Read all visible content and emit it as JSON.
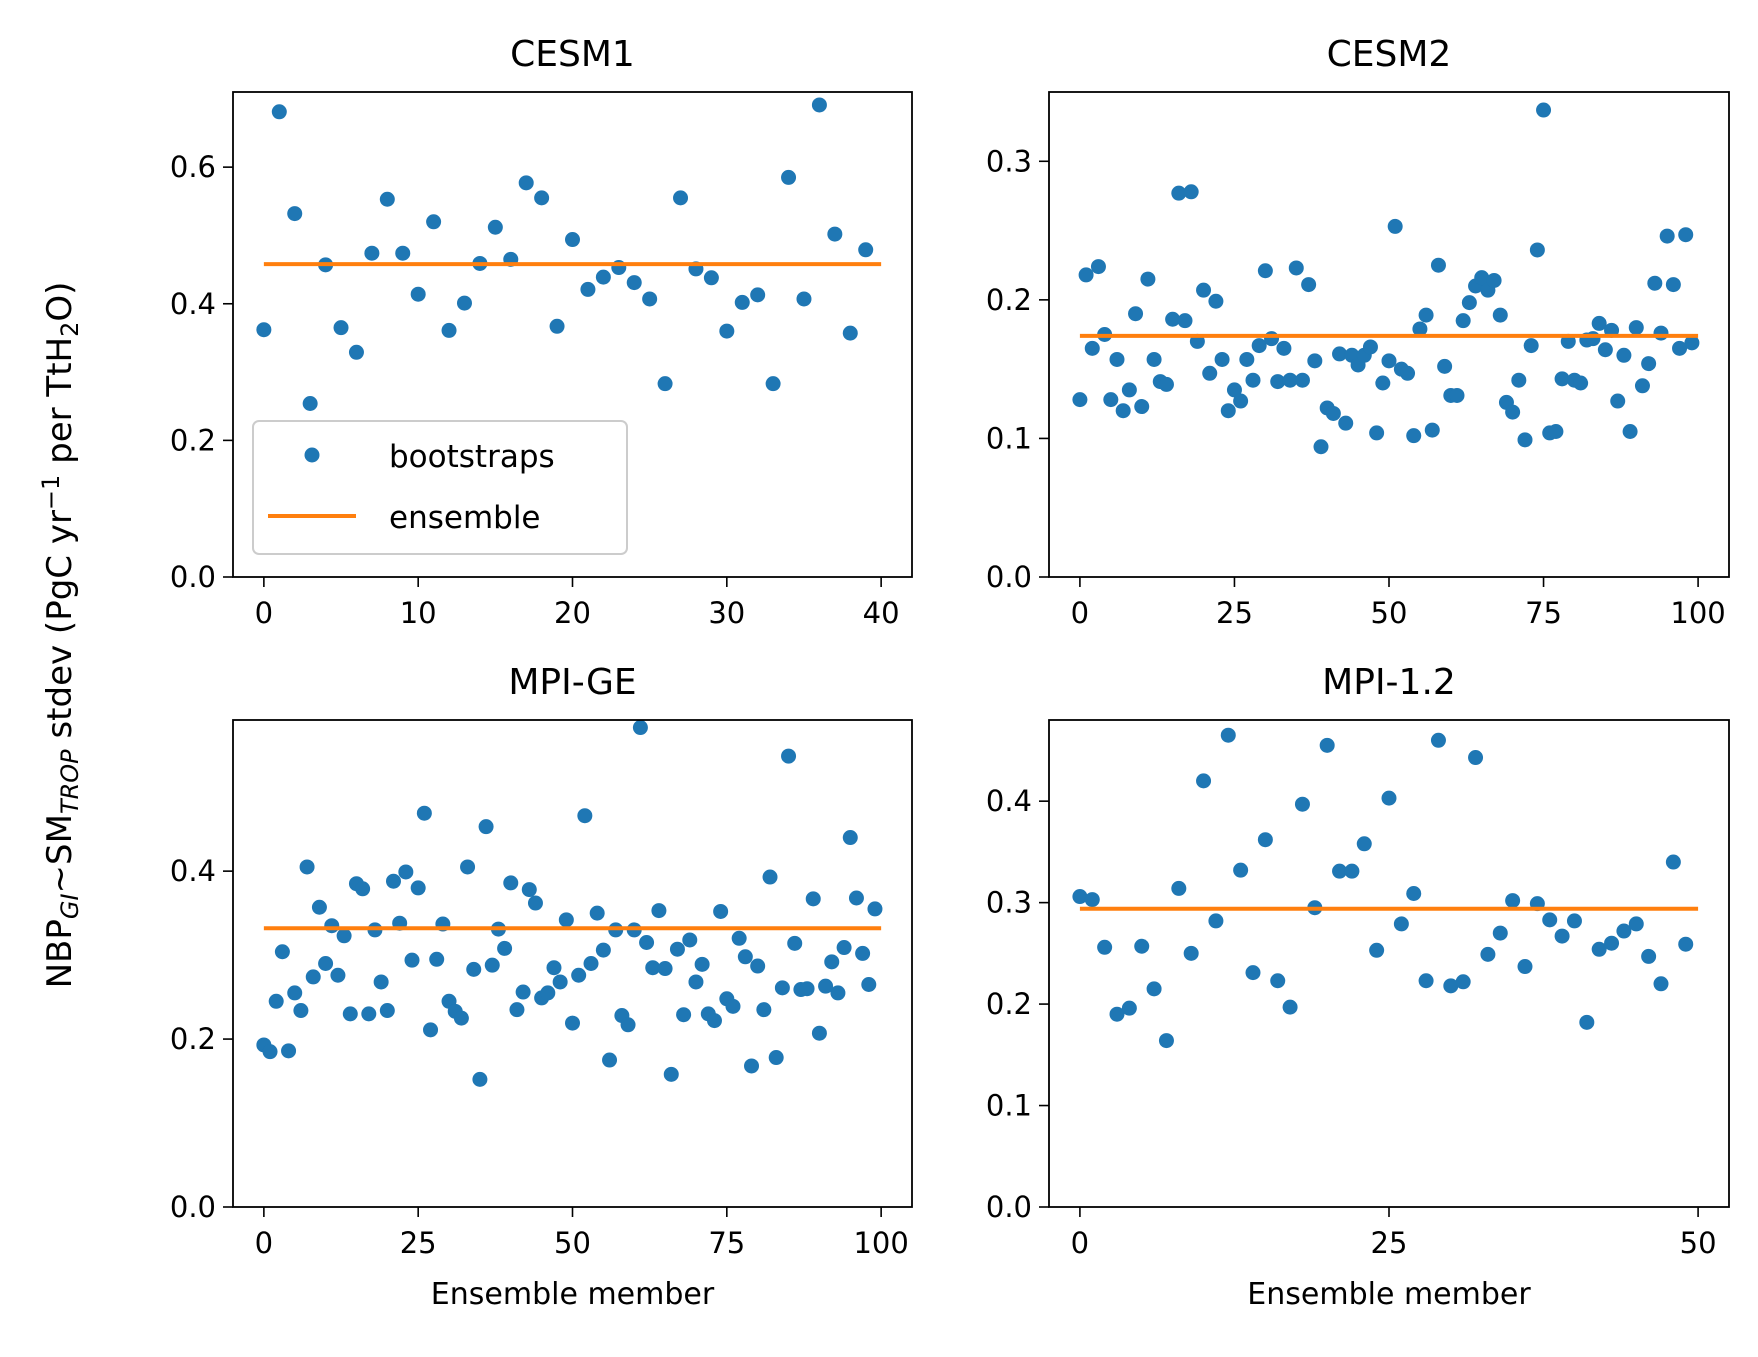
{
  "figure": {
    "ylabel": {
      "pre": "NBP",
      "sub1": "GI",
      "mid": "~SM",
      "sub2": "TROP",
      "post": " stdev (PgC yr",
      "sup": "−1",
      "post2": " per TtH",
      "sub3": "2",
      "post3": "O)"
    }
  },
  "legend": {
    "bootstraps": "bootstraps",
    "ensemble": "ensemble"
  },
  "colors": {
    "bootstraps": "#1f77b4",
    "ensemble": "#ff7f0e"
  },
  "chart_data": [
    {
      "type": "scatter",
      "title": "CESM1",
      "xlabel": "",
      "xlim": [
        -2,
        42
      ],
      "ylim": [
        0,
        0.71
      ],
      "xticks": [
        0,
        10,
        20,
        30,
        40
      ],
      "yticks": [
        0.0,
        0.2,
        0.4,
        0.6
      ],
      "legend": "lower-left",
      "ensemble": 0.458,
      "series": [
        {
          "name": "bootstraps",
          "x": [
            0,
            1,
            2,
            3,
            4,
            5,
            6,
            7,
            8,
            9,
            10,
            11,
            12,
            13,
            14,
            15,
            16,
            17,
            18,
            19,
            20,
            21,
            22,
            23,
            24,
            25,
            26,
            27,
            28,
            29,
            30,
            31,
            32,
            33,
            34,
            35,
            36,
            37,
            38,
            39
          ],
          "values": [
            0.362,
            0.681,
            0.532,
            0.254,
            0.457,
            0.365,
            0.329,
            0.474,
            0.553,
            0.474,
            0.414,
            0.52,
            0.361,
            0.401,
            0.459,
            0.512,
            0.465,
            0.577,
            0.555,
            0.367,
            0.494,
            0.421,
            0.439,
            0.453,
            0.431,
            0.407,
            0.283,
            0.555,
            0.451,
            0.438,
            0.36,
            0.402,
            0.413,
            0.283,
            0.585,
            0.407,
            0.691,
            0.502,
            0.357,
            0.479
          ]
        }
      ]
    },
    {
      "type": "scatter",
      "title": "CESM2",
      "xlabel": "",
      "xlim": [
        -5,
        105
      ],
      "ylim": [
        0,
        0.35
      ],
      "xticks": [
        0,
        25,
        50,
        75,
        100
      ],
      "yticks": [
        0.0,
        0.1,
        0.2,
        0.3
      ],
      "ensemble": 0.174,
      "series": [
        {
          "name": "bootstraps",
          "x": [
            0,
            1,
            2,
            3,
            4,
            5,
            6,
            7,
            8,
            9,
            10,
            11,
            12,
            13,
            14,
            15,
            16,
            17,
            18,
            19,
            20,
            21,
            22,
            23,
            24,
            25,
            26,
            27,
            28,
            29,
            30,
            31,
            32,
            33,
            34,
            35,
            36,
            37,
            38,
            39,
            40,
            41,
            42,
            43,
            44,
            45,
            46,
            47,
            48,
            49,
            50,
            51,
            52,
            53,
            54,
            55,
            56,
            57,
            58,
            59,
            60,
            61,
            62,
            63,
            64,
            65,
            66,
            67,
            68,
            69,
            70,
            71,
            72,
            73,
            74,
            75,
            76,
            77,
            78,
            79,
            80,
            81,
            82,
            83,
            84,
            85,
            86,
            87,
            88,
            89,
            90,
            91,
            92,
            93,
            94,
            95,
            96,
            97,
            98,
            99
          ],
          "values": [
            0.128,
            0.218,
            0.165,
            0.224,
            0.175,
            0.128,
            0.157,
            0.12,
            0.135,
            0.19,
            0.123,
            0.215,
            0.157,
            0.141,
            0.139,
            0.186,
            0.277,
            0.185,
            0.278,
            0.17,
            0.207,
            0.147,
            0.199,
            0.157,
            0.12,
            0.135,
            0.127,
            0.157,
            0.142,
            0.167,
            0.221,
            0.172,
            0.141,
            0.165,
            0.142,
            0.223,
            0.142,
            0.211,
            0.156,
            0.094,
            0.122,
            0.118,
            0.161,
            0.111,
            0.16,
            0.153,
            0.16,
            0.166,
            0.104,
            0.14,
            0.156,
            0.253,
            0.15,
            0.147,
            0.102,
            0.179,
            0.189,
            0.106,
            0.225,
            0.152,
            0.131,
            0.131,
            0.185,
            0.198,
            0.21,
            0.216,
            0.207,
            0.214,
            0.189,
            0.126,
            0.119,
            0.142,
            0.099,
            0.167,
            0.236,
            0.337,
            0.104,
            0.105,
            0.143,
            0.17,
            0.142,
            0.14,
            0.171,
            0.172,
            0.183,
            0.164,
            0.178,
            0.127,
            0.16,
            0.105,
            0.18,
            0.138,
            0.154,
            0.212,
            0.176,
            0.246,
            0.211,
            0.165,
            0.247,
            0.169
          ]
        }
      ]
    },
    {
      "type": "scatter",
      "title": "MPI-GE",
      "xlabel": "Ensemble member",
      "xlim": [
        -5,
        105
      ],
      "ylim": [
        0,
        0.58
      ],
      "xticks": [
        0,
        25,
        50,
        75,
        100
      ],
      "yticks": [
        0.0,
        0.2,
        0.4
      ],
      "ensemble": 0.332,
      "series": [
        {
          "name": "bootstraps",
          "x": [
            0,
            1,
            2,
            3,
            4,
            5,
            6,
            7,
            8,
            9,
            10,
            11,
            12,
            13,
            14,
            15,
            16,
            17,
            18,
            19,
            20,
            21,
            22,
            23,
            24,
            25,
            26,
            27,
            28,
            29,
            30,
            31,
            32,
            33,
            34,
            35,
            36,
            37,
            38,
            39,
            40,
            41,
            42,
            43,
            44,
            45,
            46,
            47,
            48,
            49,
            50,
            51,
            52,
            53,
            54,
            55,
            56,
            57,
            58,
            59,
            60,
            61,
            62,
            63,
            64,
            65,
            66,
            67,
            68,
            69,
            70,
            71,
            72,
            73,
            74,
            75,
            76,
            77,
            78,
            79,
            80,
            81,
            82,
            83,
            84,
            85,
            86,
            87,
            88,
            89,
            90,
            91,
            92,
            93,
            94,
            95,
            96,
            97,
            98,
            99
          ],
          "values": [
            0.193,
            0.185,
            0.245,
            0.304,
            0.186,
            0.255,
            0.234,
            0.405,
            0.274,
            0.357,
            0.29,
            0.335,
            0.276,
            0.323,
            0.23,
            0.385,
            0.379,
            0.23,
            0.33,
            0.268,
            0.234,
            0.388,
            0.338,
            0.399,
            0.294,
            0.38,
            0.469,
            0.211,
            0.295,
            0.337,
            0.245,
            0.233,
            0.225,
            0.405,
            0.283,
            0.152,
            0.453,
            0.288,
            0.331,
            0.308,
            0.386,
            0.235,
            0.256,
            0.378,
            0.362,
            0.249,
            0.255,
            0.285,
            0.268,
            0.342,
            0.219,
            0.276,
            0.466,
            0.29,
            0.35,
            0.306,
            0.175,
            0.33,
            0.228,
            0.217,
            0.33,
            0.571,
            0.315,
            0.285,
            0.353,
            0.284,
            0.158,
            0.307,
            0.229,
            0.318,
            0.268,
            0.289,
            0.23,
            0.222,
            0.352,
            0.248,
            0.239,
            0.32,
            0.298,
            0.168,
            0.287,
            0.235,
            0.393,
            0.178,
            0.261,
            0.537,
            0.314,
            0.259,
            0.26,
            0.367,
            0.207,
            0.263,
            0.292,
            0.255,
            0.309,
            0.44,
            0.368,
            0.302,
            0.265,
            0.355
          ]
        }
      ]
    },
    {
      "type": "scatter",
      "title": "MPI-1.2",
      "xlabel": "Ensemble member",
      "xlim": [
        -2.5,
        52.5
      ],
      "ylim": [
        0,
        0.48
      ],
      "xticks": [
        0,
        25,
        50
      ],
      "yticks": [
        0.0,
        0.1,
        0.2,
        0.3,
        0.4
      ],
      "ensemble": 0.294,
      "series": [
        {
          "name": "bootstraps",
          "x": [
            0,
            1,
            2,
            3,
            4,
            5,
            6,
            7,
            8,
            9,
            10,
            11,
            12,
            13,
            14,
            15,
            16,
            17,
            18,
            19,
            20,
            21,
            22,
            23,
            24,
            25,
            26,
            27,
            28,
            29,
            30,
            31,
            32,
            33,
            34,
            35,
            36,
            37,
            38,
            39,
            40,
            41,
            42,
            43,
            44,
            45,
            46,
            47,
            48,
            49
          ],
          "values": [
            0.306,
            0.303,
            0.256,
            0.19,
            0.196,
            0.257,
            0.215,
            0.164,
            0.314,
            0.25,
            0.42,
            0.282,
            0.465,
            0.332,
            0.231,
            0.362,
            0.223,
            0.197,
            0.397,
            0.295,
            0.455,
            0.331,
            0.331,
            0.358,
            0.253,
            0.403,
            0.279,
            0.309,
            0.223,
            0.46,
            0.218,
            0.222,
            0.443,
            0.249,
            0.27,
            0.302,
            0.237,
            0.299,
            0.283,
            0.267,
            0.282,
            0.182,
            0.254,
            0.26,
            0.272,
            0.279,
            0.247,
            0.22,
            0.34,
            0.259
          ]
        }
      ]
    }
  ]
}
